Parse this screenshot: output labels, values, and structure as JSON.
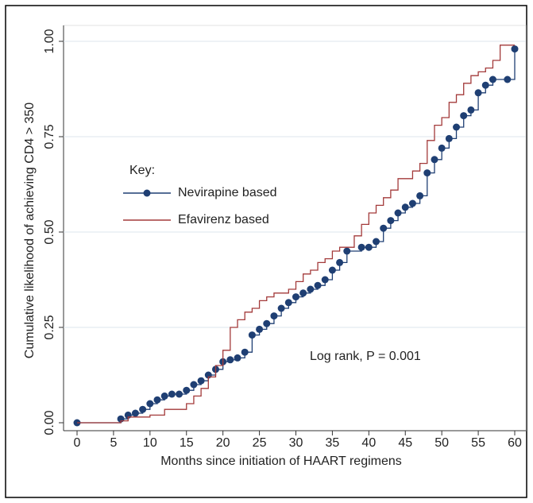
{
  "chart_data": {
    "type": "step",
    "x_label": "Months since initiation of HAART regimens",
    "y_label": "Cumulative likelihood of achieving CD4 > 350",
    "legend_title": "Key:",
    "annotation": "Log rank, P = 0.001",
    "xlim": [
      0,
      60
    ],
    "ylim": [
      0,
      1
    ],
    "xticks": [
      0,
      5,
      10,
      15,
      20,
      25,
      30,
      35,
      40,
      45,
      50,
      55,
      60
    ],
    "yticks": [
      {
        "value": 0,
        "label": "0.00"
      },
      {
        "value": 0.25,
        "label": "0.25"
      },
      {
        "value": 0.5,
        "label": "0.50"
      },
      {
        "value": 0.75,
        "label": "0.75"
      },
      {
        "value": 1,
        "label": "1.00"
      }
    ],
    "grid": true,
    "series": [
      {
        "name": "Nevirapine based",
        "color": "#1f3f73",
        "marker": "circle",
        "x": [
          0,
          6,
          7,
          8,
          9,
          10,
          11,
          12,
          13,
          14,
          15,
          16,
          17,
          18,
          19,
          20,
          21,
          22,
          23,
          24,
          25,
          26,
          27,
          28,
          29,
          30,
          31,
          32,
          33,
          34,
          35,
          36,
          37,
          39,
          40,
          41,
          42,
          43,
          44,
          45,
          46,
          47,
          48,
          49,
          50,
          51,
          52,
          53,
          54,
          55,
          56,
          57,
          59,
          60
        ],
        "values": [
          0,
          0.01,
          0.02,
          0.025,
          0.035,
          0.05,
          0.06,
          0.07,
          0.075,
          0.075,
          0.085,
          0.1,
          0.11,
          0.125,
          0.14,
          0.16,
          0.165,
          0.17,
          0.185,
          0.23,
          0.245,
          0.26,
          0.28,
          0.3,
          0.315,
          0.33,
          0.34,
          0.35,
          0.36,
          0.375,
          0.4,
          0.42,
          0.45,
          0.46,
          0.46,
          0.475,
          0.51,
          0.53,
          0.55,
          0.565,
          0.575,
          0.595,
          0.655,
          0.69,
          0.72,
          0.745,
          0.775,
          0.805,
          0.82,
          0.865,
          0.885,
          0.9,
          0.9,
          0.98
        ]
      },
      {
        "name": "Efavirenz based",
        "color": "#a33a3a",
        "marker": null,
        "x": [
          0,
          6,
          7,
          10,
          12,
          15,
          16,
          17,
          18,
          19,
          20,
          21,
          22,
          23,
          24,
          25,
          26,
          27,
          29,
          30,
          31,
          32,
          33,
          34,
          35,
          36,
          38,
          39,
          40,
          41,
          42,
          43,
          44,
          46,
          47,
          48,
          49,
          50,
          51,
          52,
          53,
          54,
          55,
          56,
          57,
          58,
          60
        ],
        "values": [
          0,
          0.005,
          0.015,
          0.02,
          0.035,
          0.05,
          0.07,
          0.09,
          0.12,
          0.15,
          0.19,
          0.25,
          0.27,
          0.29,
          0.3,
          0.32,
          0.33,
          0.34,
          0.35,
          0.37,
          0.39,
          0.4,
          0.42,
          0.43,
          0.45,
          0.46,
          0.49,
          0.52,
          0.55,
          0.57,
          0.59,
          0.61,
          0.64,
          0.66,
          0.68,
          0.74,
          0.78,
          0.8,
          0.84,
          0.86,
          0.89,
          0.91,
          0.92,
          0.93,
          0.95,
          0.99,
          0.99
        ]
      }
    ]
  }
}
